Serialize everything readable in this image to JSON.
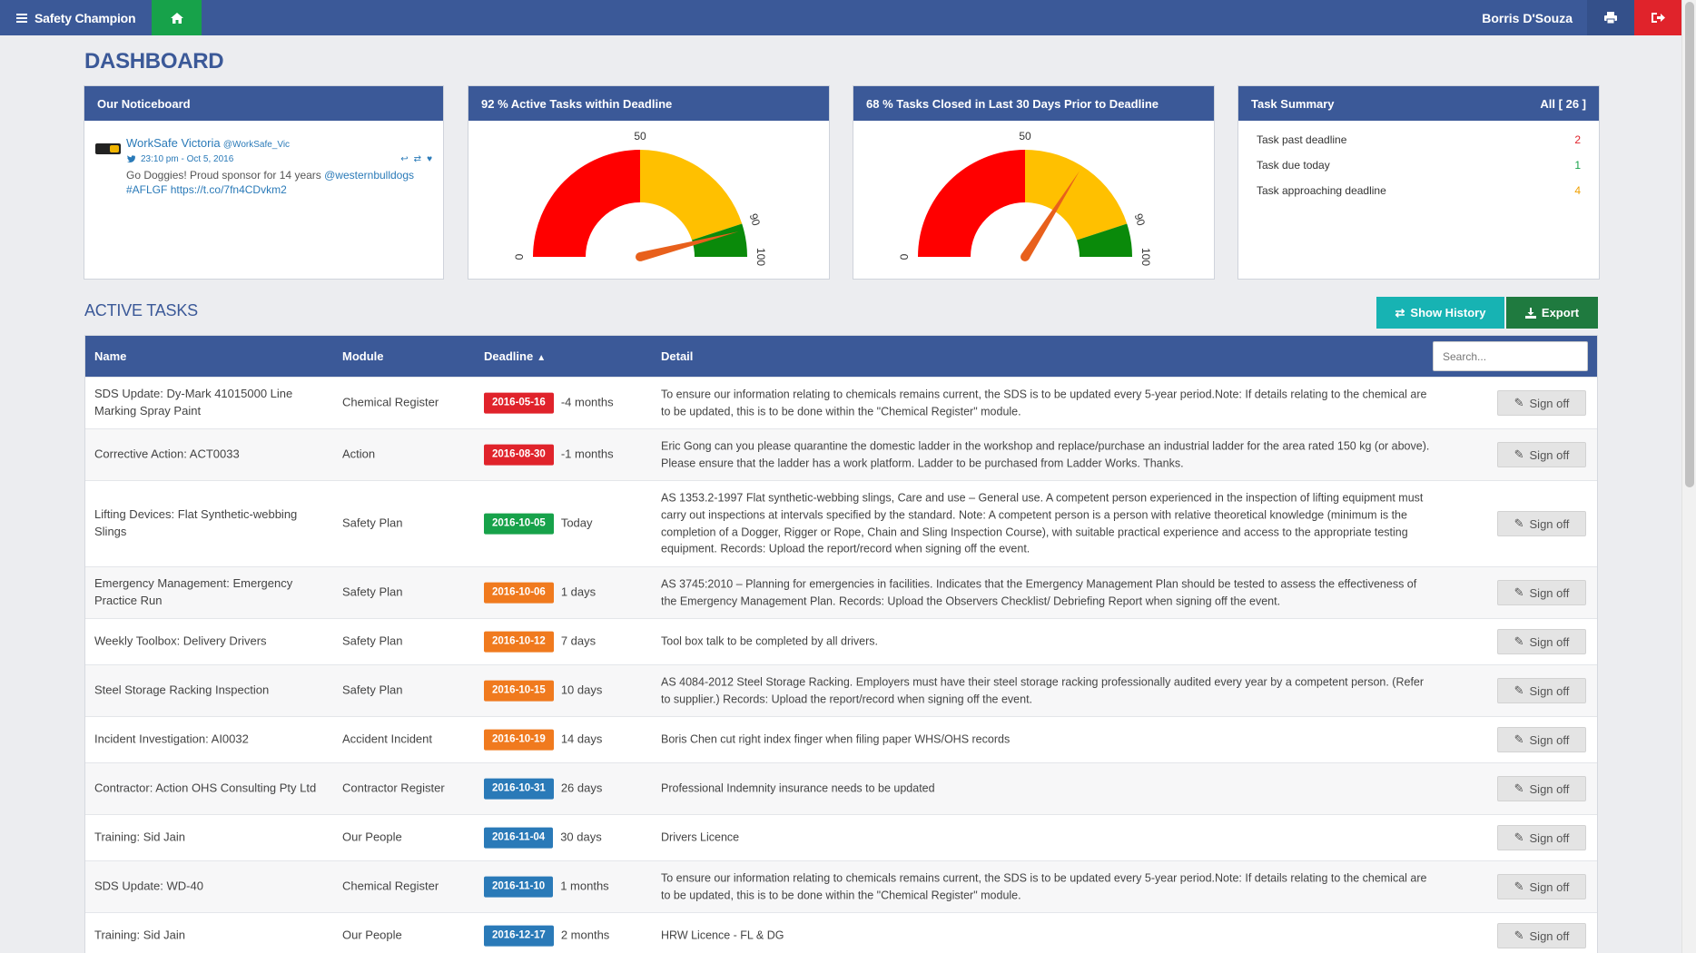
{
  "nav": {
    "brand": "Safety Champion",
    "username": "Borris D'Souza"
  },
  "page_title": "DASHBOARD",
  "noticeboard": {
    "title": "Our Noticeboard",
    "tweet": {
      "author": "WorkSafe Victoria",
      "handle": "@WorkSafe_Vic",
      "time": "23:10 pm - Oct 5, 2016",
      "text": "Go Doggies! Proud sponsor for 14 years ",
      "mention": "@westernbulldogs",
      "hashtag": "#AFLGF",
      "link": "https://t.co/7fn4CDvkm2"
    }
  },
  "gauges": [
    {
      "title": "92 % Active Tasks within Deadline",
      "value": 92,
      "labels": {
        "min": "0",
        "mid": "50",
        "high": "90",
        "max": "100"
      },
      "colors": {
        "red": "#ff0000",
        "yellow": "#ffc000",
        "green": "#0a8a0a",
        "needle": "#e8601c"
      }
    },
    {
      "title": "68 % Tasks Closed in Last 30 Days Prior to Deadline",
      "value": 68,
      "labels": {
        "min": "0",
        "mid": "50",
        "high": "90",
        "max": "100"
      },
      "colors": {
        "red": "#ff0000",
        "yellow": "#ffc000",
        "green": "#0a8a0a",
        "needle": "#e8601c"
      }
    }
  ],
  "task_summary": {
    "title": "Task Summary",
    "all_label": "All [ 26 ]",
    "rows": [
      {
        "label": "Task past deadline",
        "count": "2"
      },
      {
        "label": "Task due today",
        "count": "1"
      },
      {
        "label": "Task approaching deadline",
        "count": "4"
      }
    ]
  },
  "active_tasks": {
    "title": "ACTIVE TASKS",
    "show_history": "Show History",
    "export": "Export",
    "search_placeholder": "Search...",
    "headers": {
      "name": "Name",
      "module": "Module",
      "deadline": "Deadline",
      "detail": "Detail"
    },
    "signoff_label": "Sign off",
    "rows": [
      {
        "name": "SDS Update: Dy-Mark 41015000 Line Marking Spray Paint",
        "module": "Chemical Register",
        "date": "2016-05-16",
        "status": "red",
        "rel": "-4 months",
        "detail": "To ensure our information relating to chemicals remains current, the SDS is to be updated every 5-year period.Note: If details relating to the chemical are to be updated, this is to be done within the \"Chemical Register\" module."
      },
      {
        "name": "Corrective Action: ACT0033",
        "module": "Action",
        "date": "2016-08-30",
        "status": "red",
        "rel": "-1 months",
        "detail": "Eric Gong can you please quarantine the domestic ladder in the workshop and replace/purchase an industrial ladder for the area rated 150 kg (or above). Please ensure that the ladder has a work platform. Ladder to be purchased from Ladder Works. Thanks."
      },
      {
        "name": "Lifting Devices: Flat Synthetic-webbing Slings",
        "module": "Safety Plan",
        "date": "2016-10-05",
        "status": "green",
        "rel": "Today",
        "detail": "AS 1353.2-1997 Flat synthetic-webbing slings, Care and use – General use. A competent person experienced in the inspection of lifting equipment must carry out inspections at intervals specified by the standard. Note: A competent person is a person with relative theoretical knowledge (minimum is the completion of a Dogger, Rigger or Rope, Chain and Sling Inspection Course), with suitable practical experience and access to the appropriate testing equipment. Records: Upload the report/record when signing off the event."
      },
      {
        "name": "Emergency Management: Emergency Practice Run",
        "module": "Safety Plan",
        "date": "2016-10-06",
        "status": "orange",
        "rel": "1 days",
        "detail": "AS 3745:2010 – Planning for emergencies in facilities. Indicates that the Emergency Management Plan should be tested to assess the effectiveness of the Emergency Management Plan. Records: Upload the Observers Checklist/ Debriefing Report when signing off the event."
      },
      {
        "name": "Weekly Toolbox: Delivery Drivers",
        "module": "Safety Plan",
        "date": "2016-10-12",
        "status": "orange",
        "rel": "7 days",
        "detail": "Tool box talk to be completed by all drivers."
      },
      {
        "name": "Steel Storage Racking Inspection",
        "module": "Safety Plan",
        "date": "2016-10-15",
        "status": "orange",
        "rel": "10 days",
        "detail": "AS 4084-2012 Steel Storage Racking. Employers must have their steel storage racking professionally audited every year by a competent person. (Refer to supplier.) Records: Upload the report/record when signing off the event."
      },
      {
        "name": "Incident Investigation: AI0032",
        "module": "Accident Incident",
        "date": "2016-10-19",
        "status": "orange",
        "rel": "14 days",
        "detail": "Boris Chen cut right index finger when filing paper WHS/OHS records"
      },
      {
        "name": "Contractor: Action OHS Consulting Pty Ltd",
        "module": "Contractor Register",
        "date": "2016-10-31",
        "status": "blue",
        "rel": "26 days",
        "detail": "Professional Indemnity insurance needs to be updated"
      },
      {
        "name": "Training: Sid Jain",
        "module": "Our People",
        "date": "2016-11-04",
        "status": "blue",
        "rel": "30 days",
        "detail": "Drivers Licence"
      },
      {
        "name": "SDS Update: WD-40",
        "module": "Chemical Register",
        "date": "2016-11-10",
        "status": "blue",
        "rel": "1 months",
        "detail": "To ensure our information relating to chemicals remains current, the SDS is to be updated every 5-year period.Note: If details relating to the chemical are to be updated, this is to be done within the \"Chemical Register\" module."
      },
      {
        "name": "Training: Sid Jain",
        "module": "Our People",
        "date": "2016-12-17",
        "status": "blue",
        "rel": "2 months",
        "detail": "HRW Licence - FL & DG"
      }
    ]
  }
}
